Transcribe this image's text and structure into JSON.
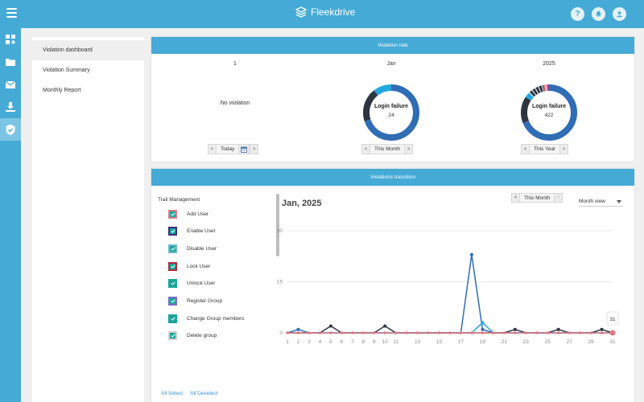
{
  "app": {
    "name": "Fleekdrive"
  },
  "header": {
    "help_symbol": "?",
    "icons": [
      "hamburger-icon",
      "fleekdrive-logo",
      "help-icon",
      "bell-icon",
      "user-icon"
    ]
  },
  "rail": {
    "icons": [
      "dashboard-add-icon",
      "folder-icon",
      "mail-icon",
      "inbox-download-icon",
      "shield-icon"
    ]
  },
  "sidemenu": {
    "items": [
      {
        "label": "Violation dashboard",
        "active": true
      },
      {
        "label": "Violation Summary"
      },
      {
        "label": "Monthly Report"
      }
    ]
  },
  "violation_rate": {
    "header": "Violation rate",
    "columns": [
      {
        "title": "1",
        "no_violation": "No violation",
        "nav_label": "Today",
        "has_calendar": true
      },
      {
        "title": "Jan",
        "donut_label": "Login failure",
        "count": "24",
        "nav_label": "This Month"
      },
      {
        "title": "2025",
        "donut_label": "Login failure",
        "count": "422",
        "nav_label": "This Year"
      }
    ],
    "nav_prev": "<",
    "nav_next": ">"
  },
  "transition": {
    "header": "Violations transition",
    "trail_title": "Trail Management",
    "trail_items": [
      {
        "label": "Add User",
        "border": "#e07a86"
      },
      {
        "label": "Enable User",
        "border": "#3a2d7a"
      },
      {
        "label": "Disable User",
        "border": "#6bb8c9"
      },
      {
        "label": "Lock User",
        "border": "#b02a36"
      },
      {
        "label": "Unlock User",
        "border": "#1aa59a"
      },
      {
        "label": "Register Group",
        "border": "#7b6cc9"
      },
      {
        "label": "Change Group members",
        "border": "#1aa59a"
      },
      {
        "label": "Delete group",
        "border": "#cfcfcf"
      }
    ],
    "all_select": "All Select",
    "all_deselect": "All Deselect",
    "chart_title": "Jan, 2025",
    "month_nav_label": "This Month",
    "view_select": "Month view",
    "tooltip": "31"
  },
  "colors": {
    "accent": "#45aad6",
    "checkbox_fill": "#1aa59a",
    "donut_main": "#2f6db5",
    "donut_light": "#22a8df",
    "donut_dark": "#2e3542"
  },
  "chart_data": {
    "type": "line",
    "title": "Jan, 2025",
    "x_ticks": [
      1,
      2,
      3,
      4,
      5,
      6,
      7,
      8,
      9,
      10,
      11,
      13,
      15,
      17,
      19,
      21,
      23,
      25,
      27,
      29,
      31
    ],
    "y_ticks": [
      0,
      15,
      30
    ],
    "ylim": [
      0,
      30
    ],
    "xlim": [
      1,
      31
    ],
    "grid": true,
    "series": [
      {
        "color": "#2f6db5",
        "values": [
          0,
          1,
          0,
          0,
          0,
          0,
          0,
          0,
          0,
          0,
          0,
          0,
          0,
          0,
          0,
          0,
          0,
          23,
          1,
          0,
          0,
          0,
          0,
          0,
          0,
          0,
          0,
          0,
          0,
          0,
          0
        ]
      },
      {
        "color": "#22a8df",
        "values": [
          0,
          0,
          0,
          0,
          0,
          0,
          0,
          0,
          0,
          0,
          0,
          0,
          0,
          0,
          0,
          0,
          0,
          0,
          3,
          0,
          0,
          0,
          0,
          0,
          0,
          0,
          0,
          0,
          0,
          0,
          0
        ]
      },
      {
        "color": "#2e3542",
        "values": [
          0,
          0,
          0,
          0,
          2,
          0,
          0,
          0,
          0,
          2,
          0,
          0,
          0,
          0,
          0,
          0,
          0,
          0,
          0,
          0,
          0,
          1,
          0,
          0,
          0,
          1,
          0,
          0,
          0,
          1,
          0
        ]
      },
      {
        "color": "#e07a86",
        "values": [
          0,
          0,
          0,
          0,
          0,
          0,
          0,
          0,
          0,
          0,
          0,
          0,
          0,
          0,
          0,
          0,
          0,
          0,
          0,
          0,
          0,
          0,
          0,
          0,
          0,
          0,
          0,
          0,
          0,
          0,
          0
        ]
      }
    ]
  }
}
